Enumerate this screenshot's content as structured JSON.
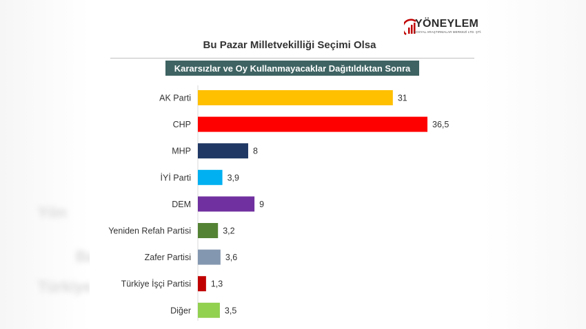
{
  "header": {
    "logo_text": "YÖNEYLEM",
    "logo_subtext": "SOSYAL ARAŞTIRMALAR MERKEZİ LTD. ŞTİ."
  },
  "background_text": [
    "Yön",
    "Ba",
    "Türkiye"
  ],
  "chart_data": {
    "type": "bar",
    "orientation": "horizontal",
    "title": "Bu Pazar Milletvekilliği Seçimi Olsa",
    "subtitle": "Kararsızlar ve Oy Kullanmayacaklar Dağıtıldıktan Sonra",
    "categories": [
      "AK Parti",
      "CHP",
      "MHP",
      "İYİ Parti",
      "DEM",
      "Yeniden Refah Partisi",
      "Zafer Partisi",
      "Türkiye İşçi Partisi",
      "Diğer"
    ],
    "values": [
      31,
      36.5,
      8,
      3.9,
      9,
      3.2,
      3.6,
      1.3,
      3.5
    ],
    "value_labels": [
      "31",
      "36,5",
      "8",
      "3,9",
      "9",
      "3,2",
      "3,6",
      "1,3",
      "3,5"
    ],
    "colors": [
      "#ffc000",
      "#ff0000",
      "#1f3864",
      "#00b0f0",
      "#7030a0",
      "#548235",
      "#8497b0",
      "#c00000",
      "#92d050"
    ],
    "xlim": [
      0,
      36.5
    ],
    "grid": false,
    "legend": "none"
  }
}
